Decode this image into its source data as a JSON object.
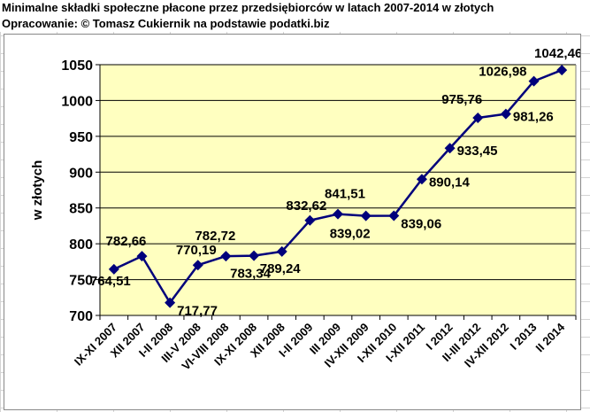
{
  "header": {
    "title": "Minimalne składki społeczne płacone przez przedsiębiorców w latach 2007-2014 w złotych",
    "credit": "Opracowanie: © Tomasz Cukiernik na podstawie podatki.biz"
  },
  "colors": {
    "plot_bg": "#ffffc0",
    "series": "#00007b",
    "grid": "#000000"
  },
  "chart_data": {
    "type": "line",
    "title": "",
    "xlabel": "",
    "ylabel": "w złotych",
    "ylim": [
      700,
      1050
    ],
    "yticks": [
      700,
      750,
      800,
      850,
      900,
      950,
      1000,
      1050
    ],
    "ytick_labels": [
      "700",
      "750",
      "800",
      "850",
      "900",
      "950",
      "1000",
      "1050"
    ],
    "grid": true,
    "legend": "none",
    "categories": [
      "IX-XI 2007",
      "XII 2007",
      "I-II 2008",
      "III-V 2008",
      "VI-VIII 2008",
      "IX-XI 2008",
      "XII 2008",
      "I-II 2009",
      "III 2009",
      "IV-XII 2009",
      "I-XII 2010",
      "I-XII 2011",
      "I 2012",
      "II-III 2012",
      "IV-XII 2012",
      "I 2013",
      "II 2014"
    ],
    "series": [
      {
        "values": [
          764.51,
          782.66,
          717.77,
          770.19,
          782.72,
          783.34,
          789.24,
          832.62,
          841.51,
          839.02,
          839.06,
          890.14,
          933.45,
          975.76,
          981.26,
          1026.98,
          1042.46
        ],
        "labels": [
          "764,51",
          "782,66",
          "717,77",
          "770,19",
          "782,72",
          "783,34",
          "789,24",
          "832,62",
          "841,51",
          "839,02",
          "839,06",
          "890,14",
          "933,45",
          "975,76",
          "981,26",
          "1026,98",
          "1042,46"
        ]
      }
    ]
  }
}
